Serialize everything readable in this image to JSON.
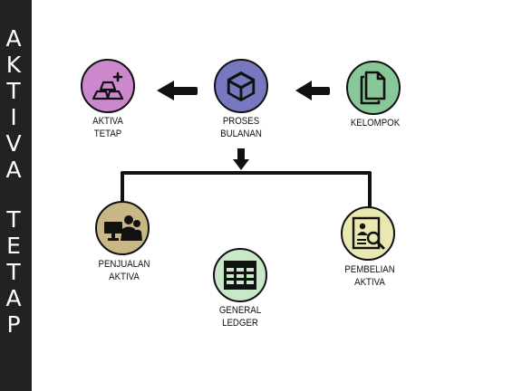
{
  "sidebar": {
    "title_letters": [
      "A",
      "K",
      "T",
      "I",
      "V",
      "A",
      "T",
      "E",
      "T",
      "A",
      "P"
    ]
  },
  "nodes": {
    "aktiva_tetap": {
      "line1": "AKTIVA",
      "line2": "TETAP",
      "color": "#cc88cc",
      "icon": "gold-bars-icon"
    },
    "proses_bulanan": {
      "line1": "PROSES",
      "line2": "BULANAN",
      "color": "#7878c0",
      "icon": "cube-icon"
    },
    "kelompok": {
      "line1": "KELOMPOK",
      "color": "#88c898",
      "icon": "documents-icon"
    },
    "penjualan_aktiva": {
      "line1": "PENJUALAN",
      "line2": "AKTIVA",
      "color": "#c8b888",
      "icon": "sales-counter-icon"
    },
    "general_ledger": {
      "line1": "GENERAL",
      "line2": "LEDGER",
      "color": "#c8e8c8",
      "icon": "ledger-grid-icon"
    },
    "pembelian_aktiva": {
      "line1": "PEMBELIAN",
      "line2": "AKTIVA",
      "color": "#e8e8b0",
      "icon": "document-search-icon"
    }
  }
}
